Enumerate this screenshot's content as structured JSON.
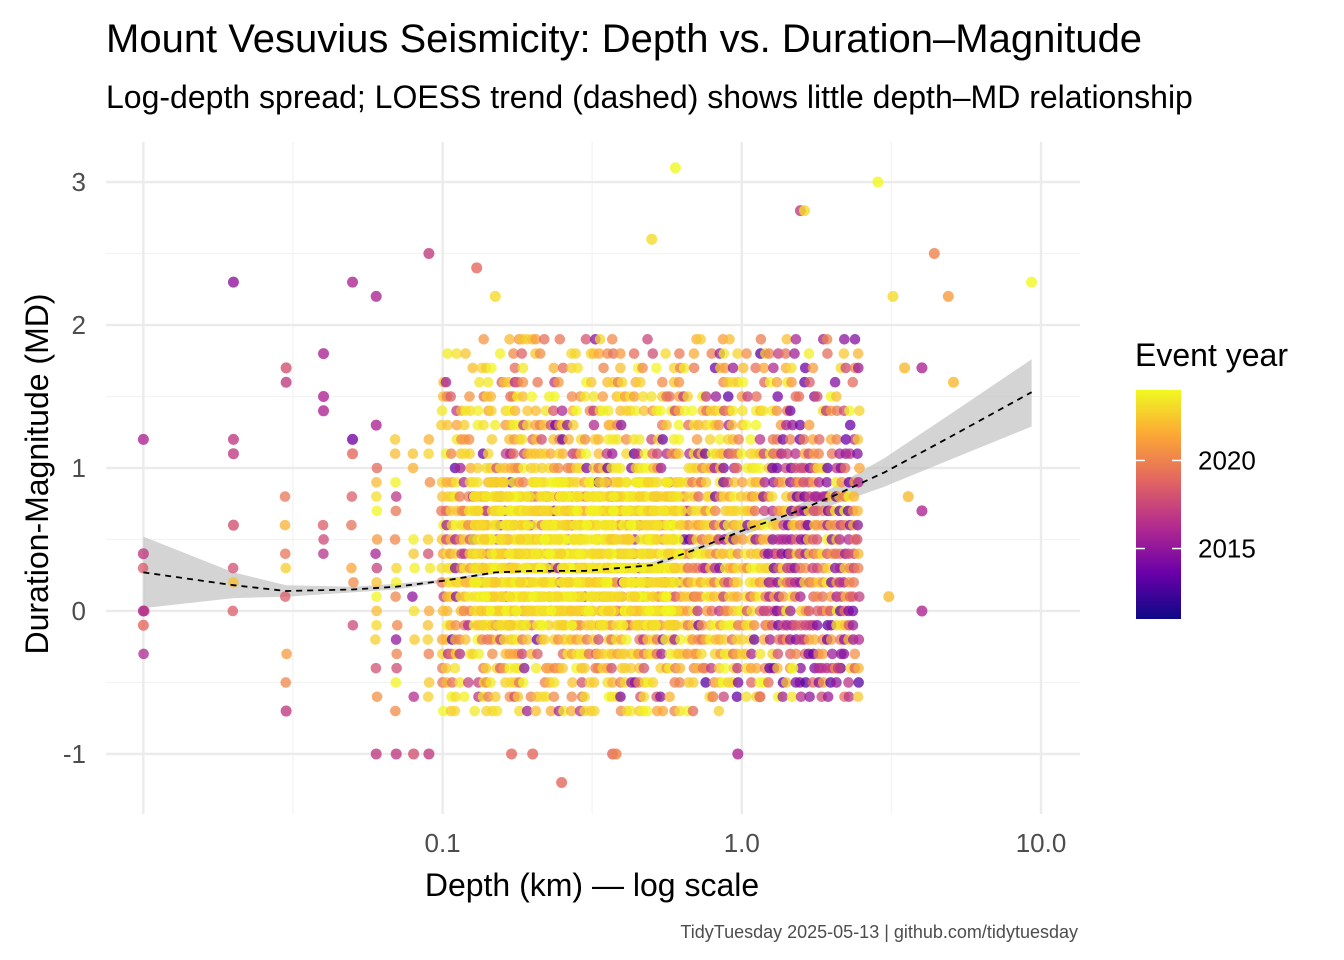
{
  "chart_data": {
    "type": "scatter",
    "title": "Mount Vesuvius Seismicity: Depth vs. Duration–Magnitude",
    "subtitle": "Log-depth spread; LOESS trend (dashed) shows little depth–MD relationship",
    "xlabel": "Depth (km) — log scale",
    "ylabel": "Duration-Magnitude (MD)",
    "caption": "TidyTuesday 2025-05-13 | github.com/tidytuesday",
    "x_scale": "log10",
    "xlim": [
      0.0075,
      13.5
    ],
    "ylim": [
      -1.42,
      3.28
    ],
    "x_ticks": [
      {
        "value": 0.1,
        "label": "0.1"
      },
      {
        "value": 1.0,
        "label": "1.0"
      },
      {
        "value": 10.0,
        "label": "10.0"
      }
    ],
    "x_minor_ticks": [
      0.01,
      0.0316,
      0.316,
      3.16
    ],
    "y_ticks": [
      {
        "value": -1,
        "label": "-1"
      },
      {
        "value": 0,
        "label": "0"
      },
      {
        "value": 1,
        "label": "1"
      },
      {
        "value": 2,
        "label": "2"
      },
      {
        "value": 3,
        "label": "3"
      }
    ],
    "y_minor_ticks": [
      -0.5,
      0.5,
      1.5,
      2.5
    ],
    "grid": true,
    "color_scale": {
      "title": "Event year",
      "palette": "plasma",
      "colors": [
        "#0d0887",
        "#6a00a8",
        "#b12a90",
        "#e16462",
        "#fca636",
        "#f0f921"
      ],
      "range": [
        2011,
        2024
      ],
      "breaks": [
        {
          "value": 2015,
          "label": "2015"
        },
        {
          "value": 2020,
          "label": "2020"
        }
      ]
    },
    "legend_position": "right",
    "highlight_points": [
      {
        "x": 0.01,
        "y": 1.2,
        "year": 2016
      },
      {
        "x": 0.01,
        "y": 0.4,
        "year": 2017
      },
      {
        "x": 0.01,
        "y": 0.0,
        "year": 2016
      },
      {
        "x": 0.01,
        "y": -0.1,
        "year": 2019
      },
      {
        "x": 0.02,
        "y": 2.3,
        "year": 2015
      },
      {
        "x": 0.02,
        "y": 1.2,
        "year": 2017
      },
      {
        "x": 0.02,
        "y": 1.1,
        "year": 2017
      },
      {
        "x": 0.02,
        "y": 0.6,
        "year": 2018
      },
      {
        "x": 0.03,
        "y": 1.7,
        "year": 2018
      },
      {
        "x": 0.03,
        "y": 1.6,
        "year": 2017
      },
      {
        "x": 0.03,
        "y": -0.7,
        "year": 2017
      },
      {
        "x": 0.04,
        "y": 1.8,
        "year": 2016
      },
      {
        "x": 0.04,
        "y": 1.5,
        "year": 2016
      },
      {
        "x": 0.04,
        "y": 1.4,
        "year": 2016
      },
      {
        "x": 0.05,
        "y": 2.3,
        "year": 2016
      },
      {
        "x": 0.05,
        "y": 1.2,
        "year": 2014
      },
      {
        "x": 0.05,
        "y": 1.1,
        "year": 2019
      },
      {
        "x": 0.06,
        "y": 2.2,
        "year": 2016
      },
      {
        "x": 0.06,
        "y": 1.3,
        "year": 2016
      },
      {
        "x": 0.06,
        "y": -1.0,
        "year": 2017
      },
      {
        "x": 0.07,
        "y": -1.0,
        "year": 2017
      },
      {
        "x": 0.08,
        "y": -1.0,
        "year": 2018
      },
      {
        "x": 0.09,
        "y": 2.5,
        "year": 2017
      },
      {
        "x": 0.09,
        "y": -1.0,
        "year": 2017
      },
      {
        "x": 0.13,
        "y": 2.4,
        "year": 2019
      },
      {
        "x": 0.15,
        "y": 2.2,
        "year": 2023
      },
      {
        "x": 0.25,
        "y": -1.2,
        "year": 2019
      },
      {
        "x": 0.2,
        "y": -1.0,
        "year": 2019
      },
      {
        "x": 0.17,
        "y": -1.0,
        "year": 2019
      },
      {
        "x": 0.37,
        "y": -1.0,
        "year": 2019
      },
      {
        "x": 0.38,
        "y": -1.0,
        "year": 2020
      },
      {
        "x": 0.5,
        "y": 2.6,
        "year": 2023
      },
      {
        "x": 0.6,
        "y": 3.1,
        "year": 2024
      },
      {
        "x": 0.97,
        "y": -1.0,
        "year": 2016
      },
      {
        "x": 1.57,
        "y": 2.8,
        "year": 2017
      },
      {
        "x": 1.62,
        "y": 2.8,
        "year": 2023
      },
      {
        "x": 2.85,
        "y": 3.0,
        "year": 2024
      },
      {
        "x": 4.4,
        "y": 2.5,
        "year": 2020
      },
      {
        "x": 4.9,
        "y": 2.2,
        "year": 2021
      },
      {
        "x": 5.1,
        "y": 1.6,
        "year": 2022
      },
      {
        "x": 9.3,
        "y": 2.3,
        "year": 2024
      },
      {
        "x": 3.2,
        "y": 2.2,
        "year": 2023
      },
      {
        "x": 3.5,
        "y": 1.7,
        "year": 2022
      },
      {
        "x": 4.0,
        "y": 1.7,
        "year": 2016
      },
      {
        "x": 4.0,
        "y": 0.7,
        "year": 2016
      },
      {
        "x": 4.0,
        "y": 0.0,
        "year": 2016
      },
      {
        "x": 3.6,
        "y": 0.8,
        "year": 2022
      },
      {
        "x": 3.1,
        "y": 0.1,
        "year": 2022
      },
      {
        "x": 0.8,
        "y": -0.6,
        "year": 2020
      },
      {
        "x": 1.15,
        "y": -0.6,
        "year": 2019
      },
      {
        "x": 2.1,
        "y": -0.4,
        "year": 2017
      },
      {
        "x": 1.48,
        "y": -0.4,
        "year": 2024
      }
    ],
    "trend": {
      "name": "LOESS",
      "style": "dashed",
      "x": [
        0.01,
        0.02,
        0.03,
        0.05,
        0.07,
        0.1,
        0.15,
        0.2,
        0.3,
        0.5,
        0.7,
        1.0,
        1.5,
        2.0,
        3.0,
        5.0,
        9.3
      ],
      "y": [
        0.27,
        0.18,
        0.14,
        0.15,
        0.17,
        0.21,
        0.27,
        0.28,
        0.28,
        0.32,
        0.43,
        0.56,
        0.69,
        0.8,
        0.97,
        1.22,
        1.53
      ],
      "ci_upper": [
        0.52,
        0.27,
        0.18,
        0.17,
        0.19,
        0.22,
        0.28,
        0.29,
        0.29,
        0.34,
        0.45,
        0.59,
        0.73,
        0.86,
        1.07,
        1.38,
        1.76
      ],
      "ci_lower": [
        0.02,
        0.09,
        0.1,
        0.13,
        0.15,
        0.2,
        0.26,
        0.27,
        0.27,
        0.3,
        0.41,
        0.53,
        0.65,
        0.74,
        0.87,
        1.06,
        1.29
      ]
    }
  }
}
